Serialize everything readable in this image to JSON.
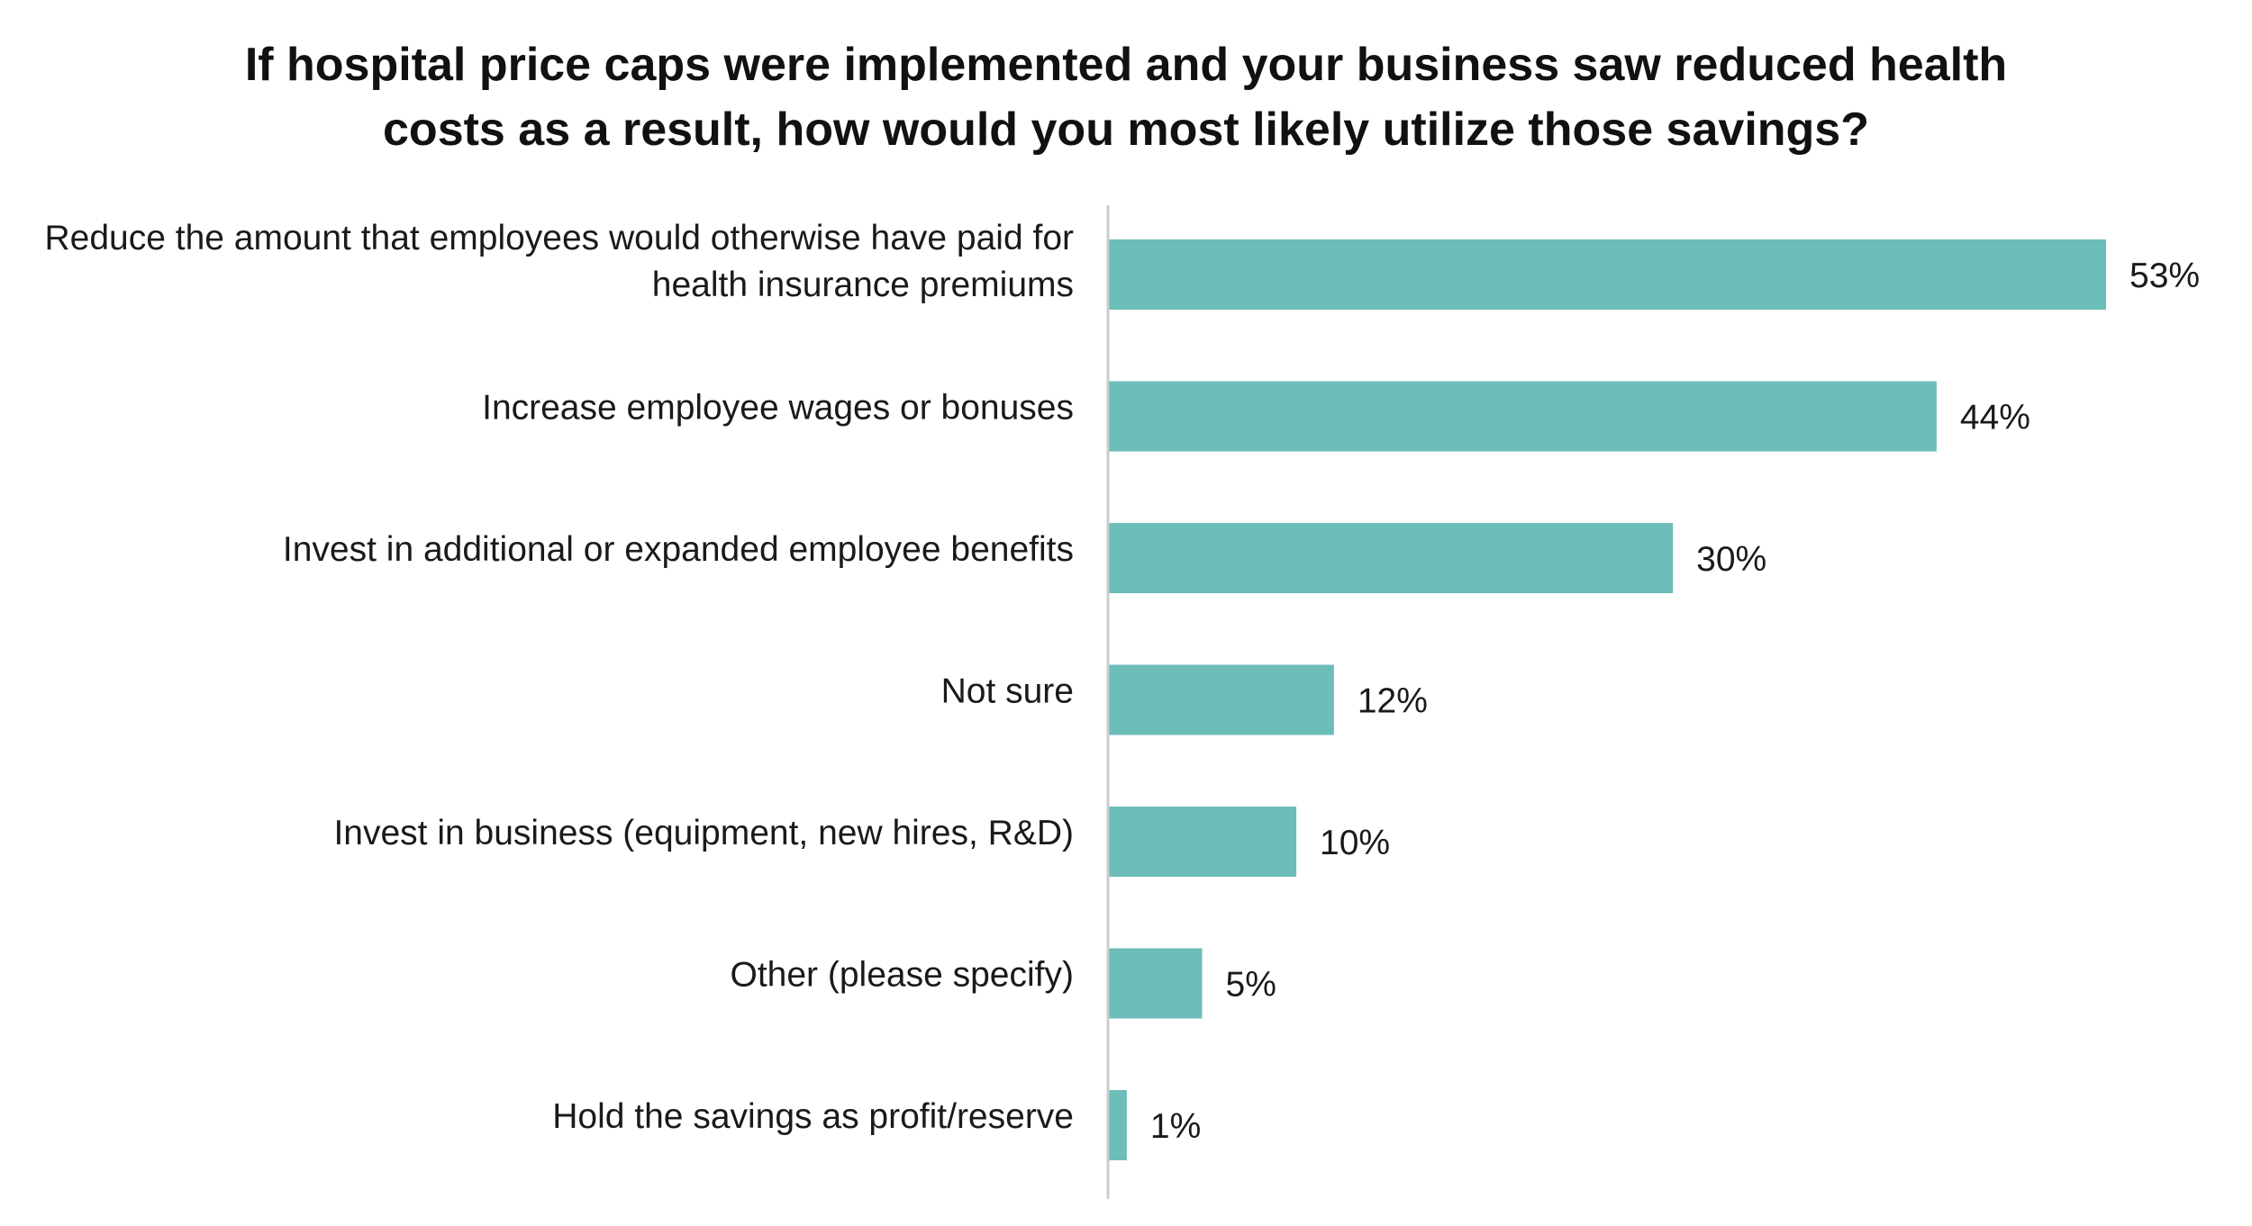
{
  "chart_data": {
    "type": "bar",
    "orientation": "horizontal",
    "title_lines": [
      "If hospital price caps were implemented and your business saw reduced health",
      "costs as a result, how would you most likely utilize those savings?"
    ],
    "categories": [
      [
        "Reduce the amount that employees would otherwise have paid for",
        "health insurance premiums"
      ],
      [
        "Increase employee wages or bonuses"
      ],
      [
        "Invest in additional or expanded employee benefits"
      ],
      [
        "Not sure"
      ],
      [
        "Invest in business (equipment, new hires, R&D)"
      ],
      [
        "Other (please specify)"
      ],
      [
        "Hold the savings as profit/reserve"
      ]
    ],
    "values": [
      53,
      44,
      30,
      12,
      10,
      5,
      1
    ],
    "value_labels": [
      "53%",
      "44%",
      "30%",
      "12%",
      "10%",
      "5%",
      "1%"
    ],
    "unit": "%",
    "xlim": [
      0,
      53
    ],
    "colors": {
      "bar": "#6dbdb9",
      "axis": "#cccccc",
      "text": "#1a1a1a"
    },
    "grid": false,
    "legend": "none"
  }
}
